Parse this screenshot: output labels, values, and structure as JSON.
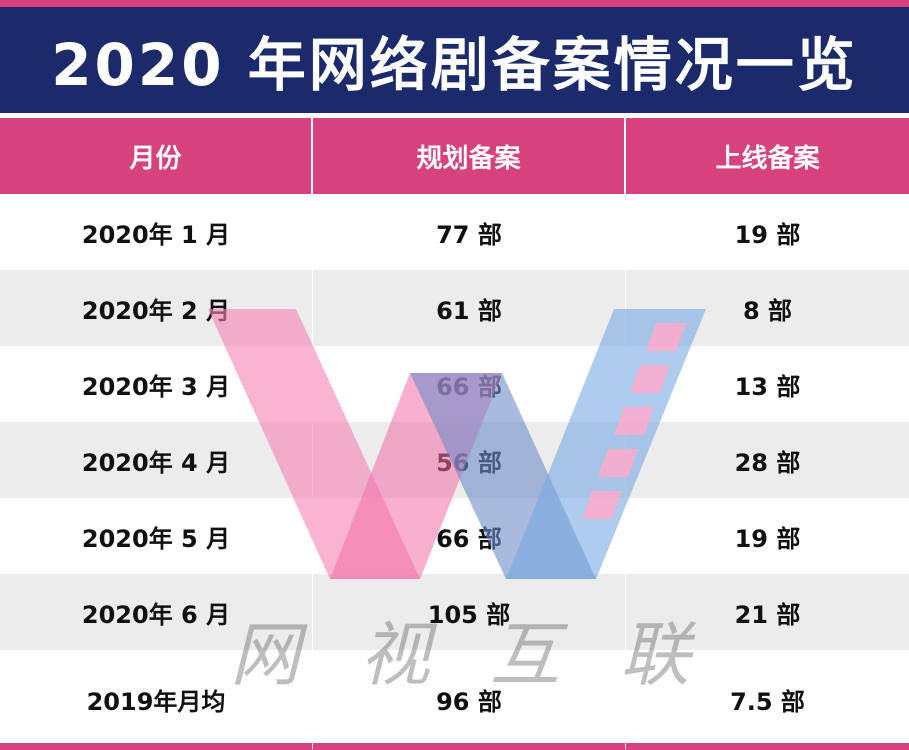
{
  "title": "2020 年网络剧备案情况一览",
  "colors": {
    "title_bg": "#1a2a6b",
    "header_bg": "#d6417e",
    "alt_row_bg": "#ececec",
    "row_bg": "#ffffff"
  },
  "table": {
    "headers": [
      "月份",
      "规划备案",
      "上线备案"
    ],
    "rows": [
      {
        "month": "2020年 1 月",
        "planned": "77 部",
        "online": "19 部"
      },
      {
        "month": "2020年 2 月",
        "planned": "61 部",
        "online": "8 部"
      },
      {
        "month": "2020年 3 月",
        "planned": "66 部",
        "online": "13 部"
      },
      {
        "month": "2020年 4 月",
        "planned": "56 部",
        "online": "28 部"
      },
      {
        "month": "2020年 5 月",
        "planned": "66 部",
        "online": "19 部"
      },
      {
        "month": "2020年 6 月",
        "planned": "105 部",
        "online": "21 部"
      },
      {
        "month": "2019年月均",
        "planned": "96 部",
        "online": "7.5 部"
      }
    ]
  },
  "watermark": {
    "text_chars": [
      "网",
      "视",
      "互",
      "联"
    ],
    "logo_icon": "w-logo-icon"
  }
}
